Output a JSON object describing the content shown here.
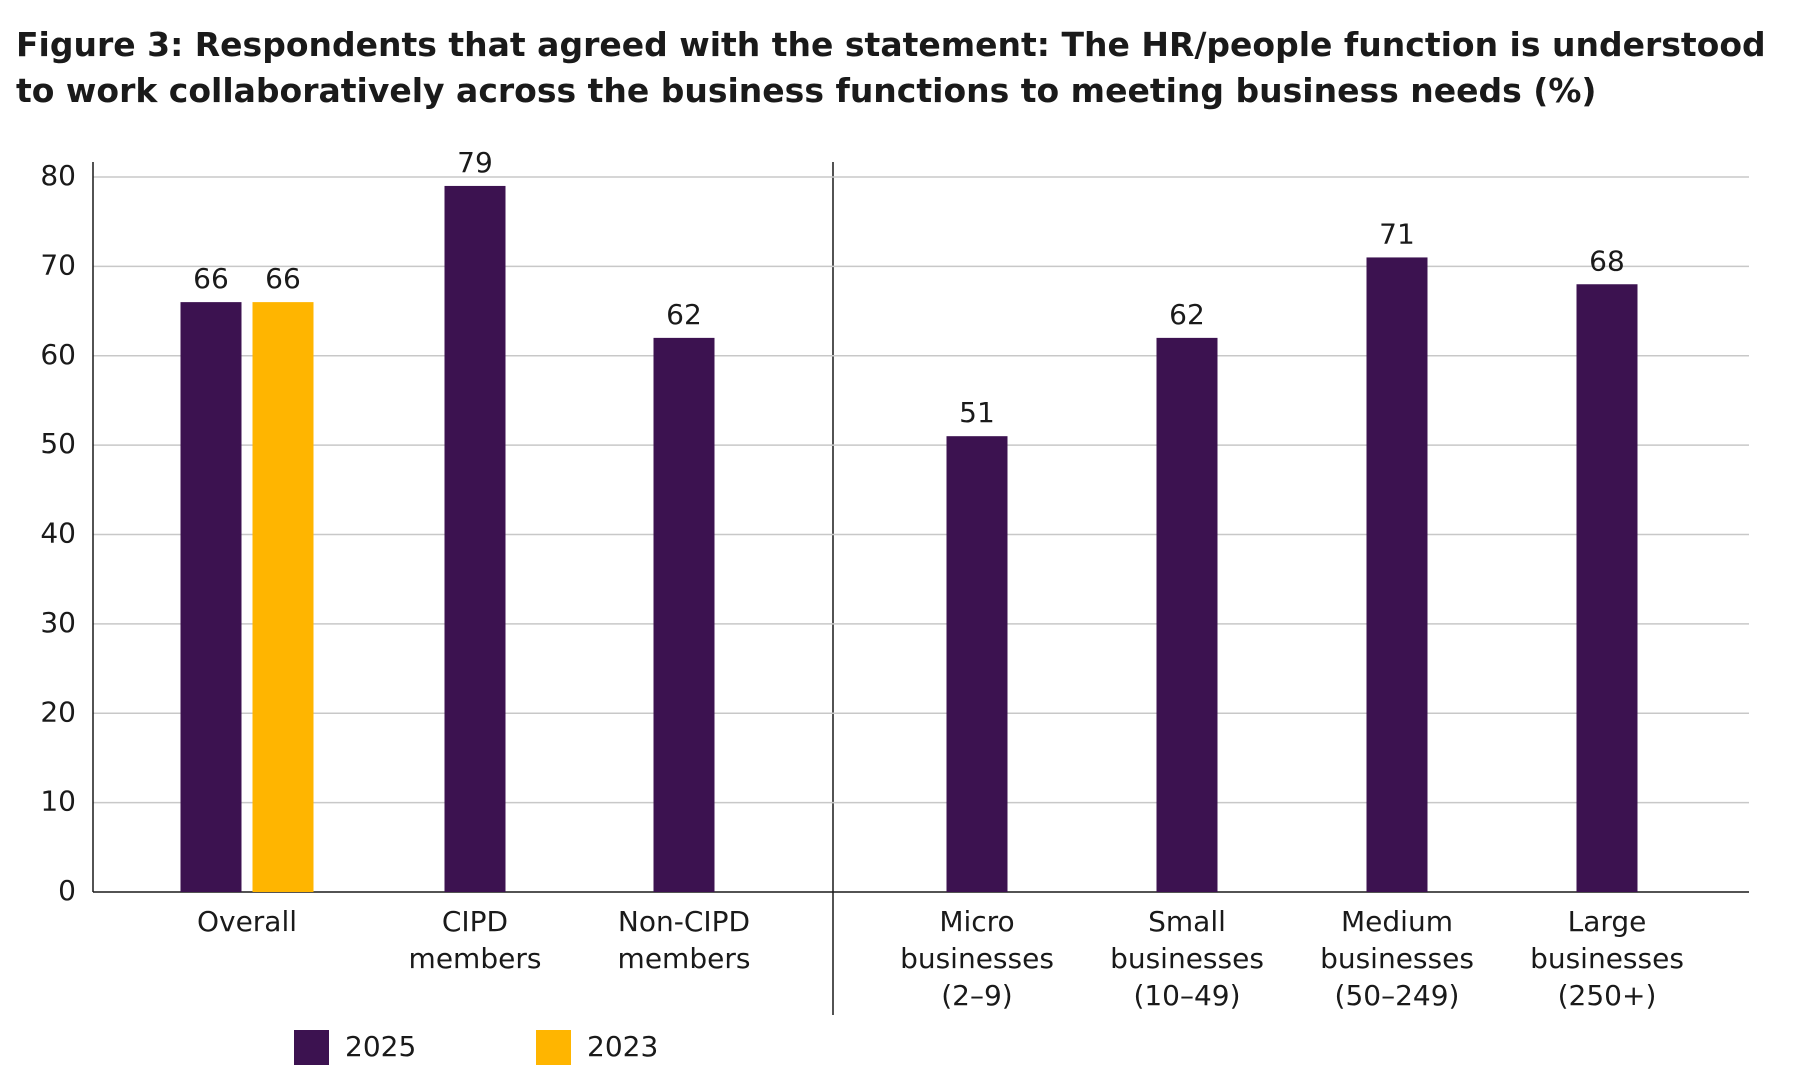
{
  "chart_data": {
    "type": "bar",
    "title": "Figure 3: Respondents that agreed with the statement: The HR/people function is understood to work collaboratively across the business functions to meeting business needs (%)",
    "categories": [
      "Overall",
      "CIPD\nmembers",
      "Non-CIPD\nmembers",
      "Micro\nbusinesses\n(2–9)",
      "Small\nbusinesses\n(10–49)",
      "Medium\nbusinesses\n(50–249)",
      "Large\nbusinesses\n(250+)"
    ],
    "series": [
      {
        "name": "2025",
        "color": "#3c1250",
        "values": [
          66,
          79,
          62,
          51,
          62,
          71,
          68
        ]
      },
      {
        "name": "2023",
        "color": "#ffb500",
        "values": [
          66,
          null,
          null,
          null,
          null,
          null,
          null
        ]
      }
    ],
    "ylim": [
      0,
      80
    ],
    "yticks": [
      0,
      10,
      20,
      30,
      40,
      50,
      60,
      70,
      80
    ],
    "grid": true
  }
}
